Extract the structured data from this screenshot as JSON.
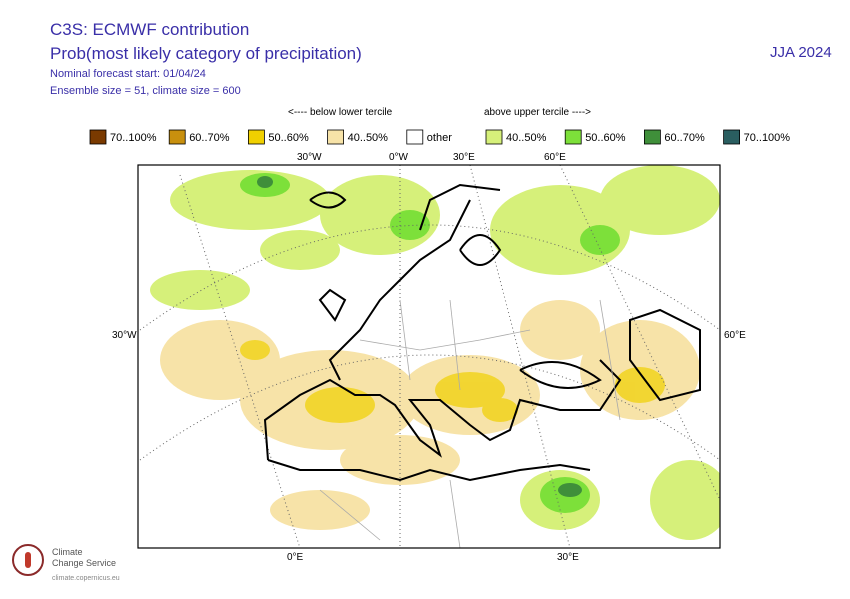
{
  "header": {
    "title": "C3S: ECMWF contribution",
    "subtitle": "Prob(most likely category of precipitation)",
    "forecast_start": "Nominal forecast start: 01/04/24",
    "ensemble": "Ensemble size = 51, climate size = 600",
    "season": "JJA 2024"
  },
  "legend": {
    "below_label": "<---- below lower tercile",
    "above_label": "above upper tercile ---->",
    "items": [
      {
        "label": "70..100%",
        "color": "#7a3a00"
      },
      {
        "label": "60..70%",
        "color": "#c8900e"
      },
      {
        "label": "50..60%",
        "color": "#f0d000"
      },
      {
        "label": "40..50%",
        "color": "#f7e3a8"
      },
      {
        "label": "other",
        "color": "#ffffff"
      },
      {
        "label": "40..50%",
        "color": "#d6f07a"
      },
      {
        "label": "50..60%",
        "color": "#7de03a"
      },
      {
        "label": "60..70%",
        "color": "#3f8f3a"
      },
      {
        "label": "70..100%",
        "color": "#2a5e60"
      }
    ]
  },
  "map": {
    "top_labels": [
      "30°W",
      "0°W",
      "30°E",
      "60°E"
    ],
    "left_label": "30°W",
    "right_label": "60°E",
    "bottom_labels": [
      "0°E",
      "30°E"
    ]
  },
  "logo": {
    "line1": "Climate",
    "line2": "Change Service",
    "url": "climate.copernicus.eu"
  }
}
